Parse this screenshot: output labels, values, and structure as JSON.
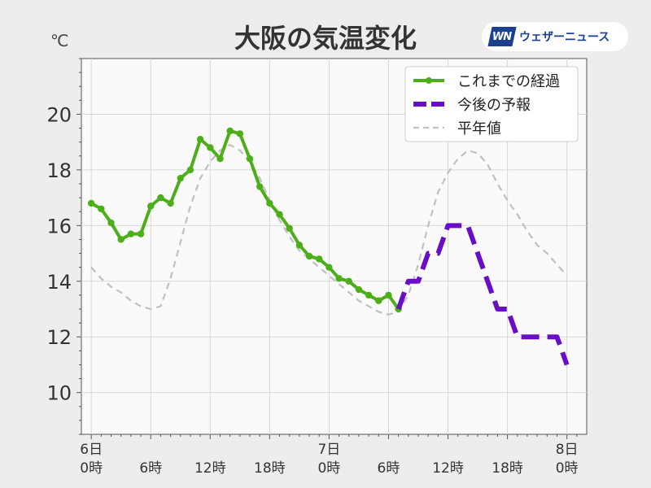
{
  "header": {
    "title": "大阪の気温変化",
    "unit": "℃",
    "logo_mark": "WN",
    "logo_text": "ウェザーニュース"
  },
  "colors": {
    "observed": "#4caf1a",
    "forecast": "#6a0dc7",
    "normal": "#c0c0c0",
    "plot_bg": "#fbfafa",
    "grid": "#d8d8d8"
  },
  "chart_data": {
    "type": "line",
    "title": "大阪の気温変化",
    "ylabel": "℃",
    "xlabel": "",
    "ylim": [
      8.5,
      22
    ],
    "xlim": [
      -1,
      50
    ],
    "yticks": [
      10,
      12,
      14,
      16,
      18,
      20
    ],
    "xticks": [
      {
        "x": 0,
        "line1": "6日",
        "line2": "0時"
      },
      {
        "x": 6,
        "line1": "",
        "line2": "6時"
      },
      {
        "x": 12,
        "line1": "",
        "line2": "12時"
      },
      {
        "x": 18,
        "line1": "",
        "line2": "18時"
      },
      {
        "x": 24,
        "line1": "7日",
        "line2": "0時"
      },
      {
        "x": 30,
        "line1": "",
        "line2": "6時"
      },
      {
        "x": 36,
        "line1": "",
        "line2": "12時"
      },
      {
        "x": 42,
        "line1": "",
        "line2": "18時"
      },
      {
        "x": 48,
        "line1": "8日",
        "line2": "0時"
      }
    ],
    "grid": true,
    "legend_position": "top-right",
    "series": [
      {
        "name": "これまでの経過",
        "style": "solid-markers",
        "x": [
          0,
          1,
          2,
          3,
          4,
          5,
          6,
          7,
          8,
          9,
          10,
          11,
          12,
          13,
          14,
          15,
          16,
          17,
          18,
          19,
          20,
          21,
          22,
          23,
          24,
          25,
          26,
          27,
          28,
          29,
          30,
          31
        ],
        "values": [
          16.8,
          16.6,
          16.1,
          15.5,
          15.7,
          15.7,
          16.7,
          17.0,
          16.8,
          17.7,
          18.0,
          19.1,
          18.8,
          18.4,
          19.4,
          19.3,
          18.4,
          17.4,
          16.8,
          16.4,
          15.9,
          15.3,
          14.9,
          14.8,
          14.5,
          14.1,
          14.0,
          13.7,
          13.5,
          13.3,
          13.5,
          13.0
        ]
      },
      {
        "name": "今後の予報",
        "style": "dashed-thick",
        "x": [
          31,
          32,
          33,
          34,
          35,
          36,
          37,
          38,
          39,
          40,
          41,
          42,
          43,
          44,
          45,
          46,
          47,
          48
        ],
        "values": [
          13,
          14,
          14,
          15,
          15,
          16,
          16,
          16,
          15,
          14,
          13,
          13,
          12,
          12,
          12,
          12,
          12,
          11
        ]
      },
      {
        "name": "平年値",
        "style": "dashed-thin",
        "x": [
          0,
          1,
          2,
          3,
          4,
          5,
          6,
          7,
          8,
          9,
          10,
          11,
          12,
          13,
          14,
          15,
          16,
          17,
          18,
          19,
          20,
          21,
          22,
          23,
          24,
          25,
          26,
          27,
          28,
          29,
          30,
          31,
          32,
          33,
          34,
          35,
          36,
          37,
          38,
          39,
          40,
          41,
          42,
          43,
          44,
          45,
          46,
          47,
          48
        ],
        "values": [
          14.5,
          14.1,
          13.8,
          13.6,
          13.3,
          13.1,
          13.0,
          13.1,
          14.1,
          15.4,
          16.7,
          17.7,
          18.3,
          18.7,
          18.9,
          18.7,
          18.3,
          17.7,
          16.9,
          16.2,
          15.6,
          15.1,
          14.8,
          14.5,
          14.2,
          13.9,
          13.6,
          13.3,
          13.1,
          12.9,
          12.8,
          12.9,
          13.5,
          14.6,
          16.0,
          17.2,
          17.9,
          18.4,
          18.7,
          18.6,
          18.2,
          17.5,
          16.9,
          16.4,
          15.8,
          15.3,
          15.0,
          14.6,
          14.2
        ]
      }
    ]
  }
}
